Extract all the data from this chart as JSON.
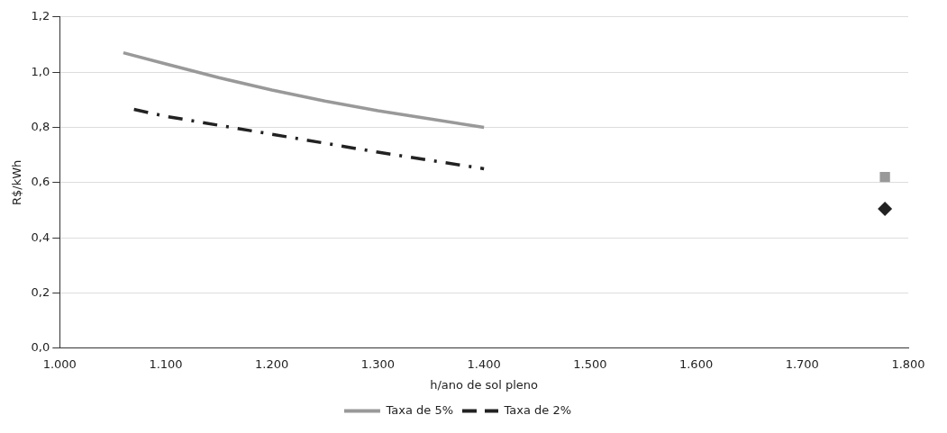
{
  "chart_data": {
    "type": "line",
    "xlabel": "h/ano de sol pleno",
    "ylabel": "R$/kWh",
    "xlim": [
      1000,
      1800
    ],
    "xticks": [
      {
        "value": 1000,
        "label": "1.000"
      },
      {
        "value": 1100,
        "label": "1.100"
      },
      {
        "value": 1200,
        "label": "1.200"
      },
      {
        "value": 1300,
        "label": "1.300"
      },
      {
        "value": 1400,
        "label": "1.400"
      },
      {
        "value": 1500,
        "label": "1.500"
      },
      {
        "value": 1600,
        "label": "1.600"
      },
      {
        "value": 1700,
        "label": "1.700"
      },
      {
        "value": 1800,
        "label": "1.800"
      }
    ],
    "ylim": [
      0,
      1.2
    ],
    "yticks": [
      {
        "value": 0,
        "label": "0,0"
      },
      {
        "value": 0.2,
        "label": "0,2"
      },
      {
        "value": 0.4,
        "label": "0,4"
      },
      {
        "value": 0.6,
        "label": "0,6"
      },
      {
        "value": 0.8,
        "label": "0,8"
      },
      {
        "value": 1.0,
        "label": "1,0"
      },
      {
        "value": 1.2,
        "label": "1,2"
      }
    ],
    "grid": "y",
    "legend": "bottom",
    "series": [
      {
        "name": "Taxa de 5%",
        "type": "line",
        "color": "#999999",
        "line_style": "solid",
        "marker": "none",
        "x": [
          1060,
          1100,
          1150,
          1200,
          1250,
          1300,
          1350,
          1400
        ],
        "values": [
          1.07,
          1.03,
          0.98,
          0.935,
          0.895,
          0.86,
          0.83,
          0.8
        ]
      },
      {
        "name": "Taxa de 2%",
        "type": "line",
        "color": "#222222",
        "line_style": "dashed",
        "marker": "none",
        "x": [
          1070,
          1100,
          1200,
          1300,
          1400
        ],
        "values": [
          0.865,
          0.84,
          0.775,
          0.71,
          0.65
        ]
      },
      {
        "type": "scatter",
        "color": "#999999",
        "marker": "square",
        "x": [
          1778
        ],
        "values": [
          0.62
        ]
      },
      {
        "type": "scatter",
        "color": "#222222",
        "marker": "diamond",
        "x": [
          1778
        ],
        "values": [
          0.505
        ]
      }
    ]
  }
}
